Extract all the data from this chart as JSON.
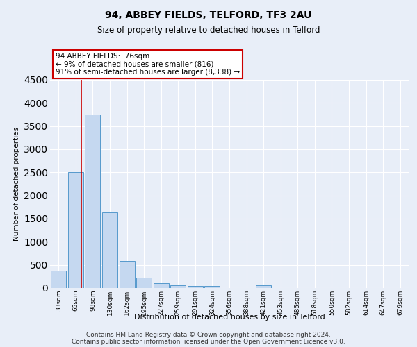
{
  "title": "94, ABBEY FIELDS, TELFORD, TF3 2AU",
  "subtitle": "Size of property relative to detached houses in Telford",
  "xlabel": "Distribution of detached houses by size in Telford",
  "ylabel": "Number of detached properties",
  "categories": [
    "33sqm",
    "65sqm",
    "98sqm",
    "130sqm",
    "162sqm",
    "195sqm",
    "227sqm",
    "259sqm",
    "291sqm",
    "324sqm",
    "356sqm",
    "388sqm",
    "421sqm",
    "453sqm",
    "485sqm",
    "518sqm",
    "550sqm",
    "582sqm",
    "614sqm",
    "647sqm",
    "679sqm"
  ],
  "values": [
    370,
    2500,
    3750,
    1640,
    590,
    230,
    110,
    65,
    50,
    40,
    0,
    0,
    60,
    0,
    0,
    0,
    0,
    0,
    0,
    0,
    0
  ],
  "bar_color": "#c5d8f0",
  "bar_edge_color": "#5599cc",
  "vline_x": 1.35,
  "annotation_text": "94 ABBEY FIELDS:  76sqm\n← 9% of detached houses are smaller (816)\n91% of semi-detached houses are larger (8,338) →",
  "annotation_box_color": "#ffffff",
  "annotation_box_edge_color": "#cc0000",
  "annotation_text_color": "#000000",
  "vline_color": "#cc0000",
  "ylim": [
    0,
    4500
  ],
  "background_color": "#e8eef8",
  "grid_color": "#ffffff",
  "footer": "Contains HM Land Registry data © Crown copyright and database right 2024.\nContains public sector information licensed under the Open Government Licence v3.0."
}
